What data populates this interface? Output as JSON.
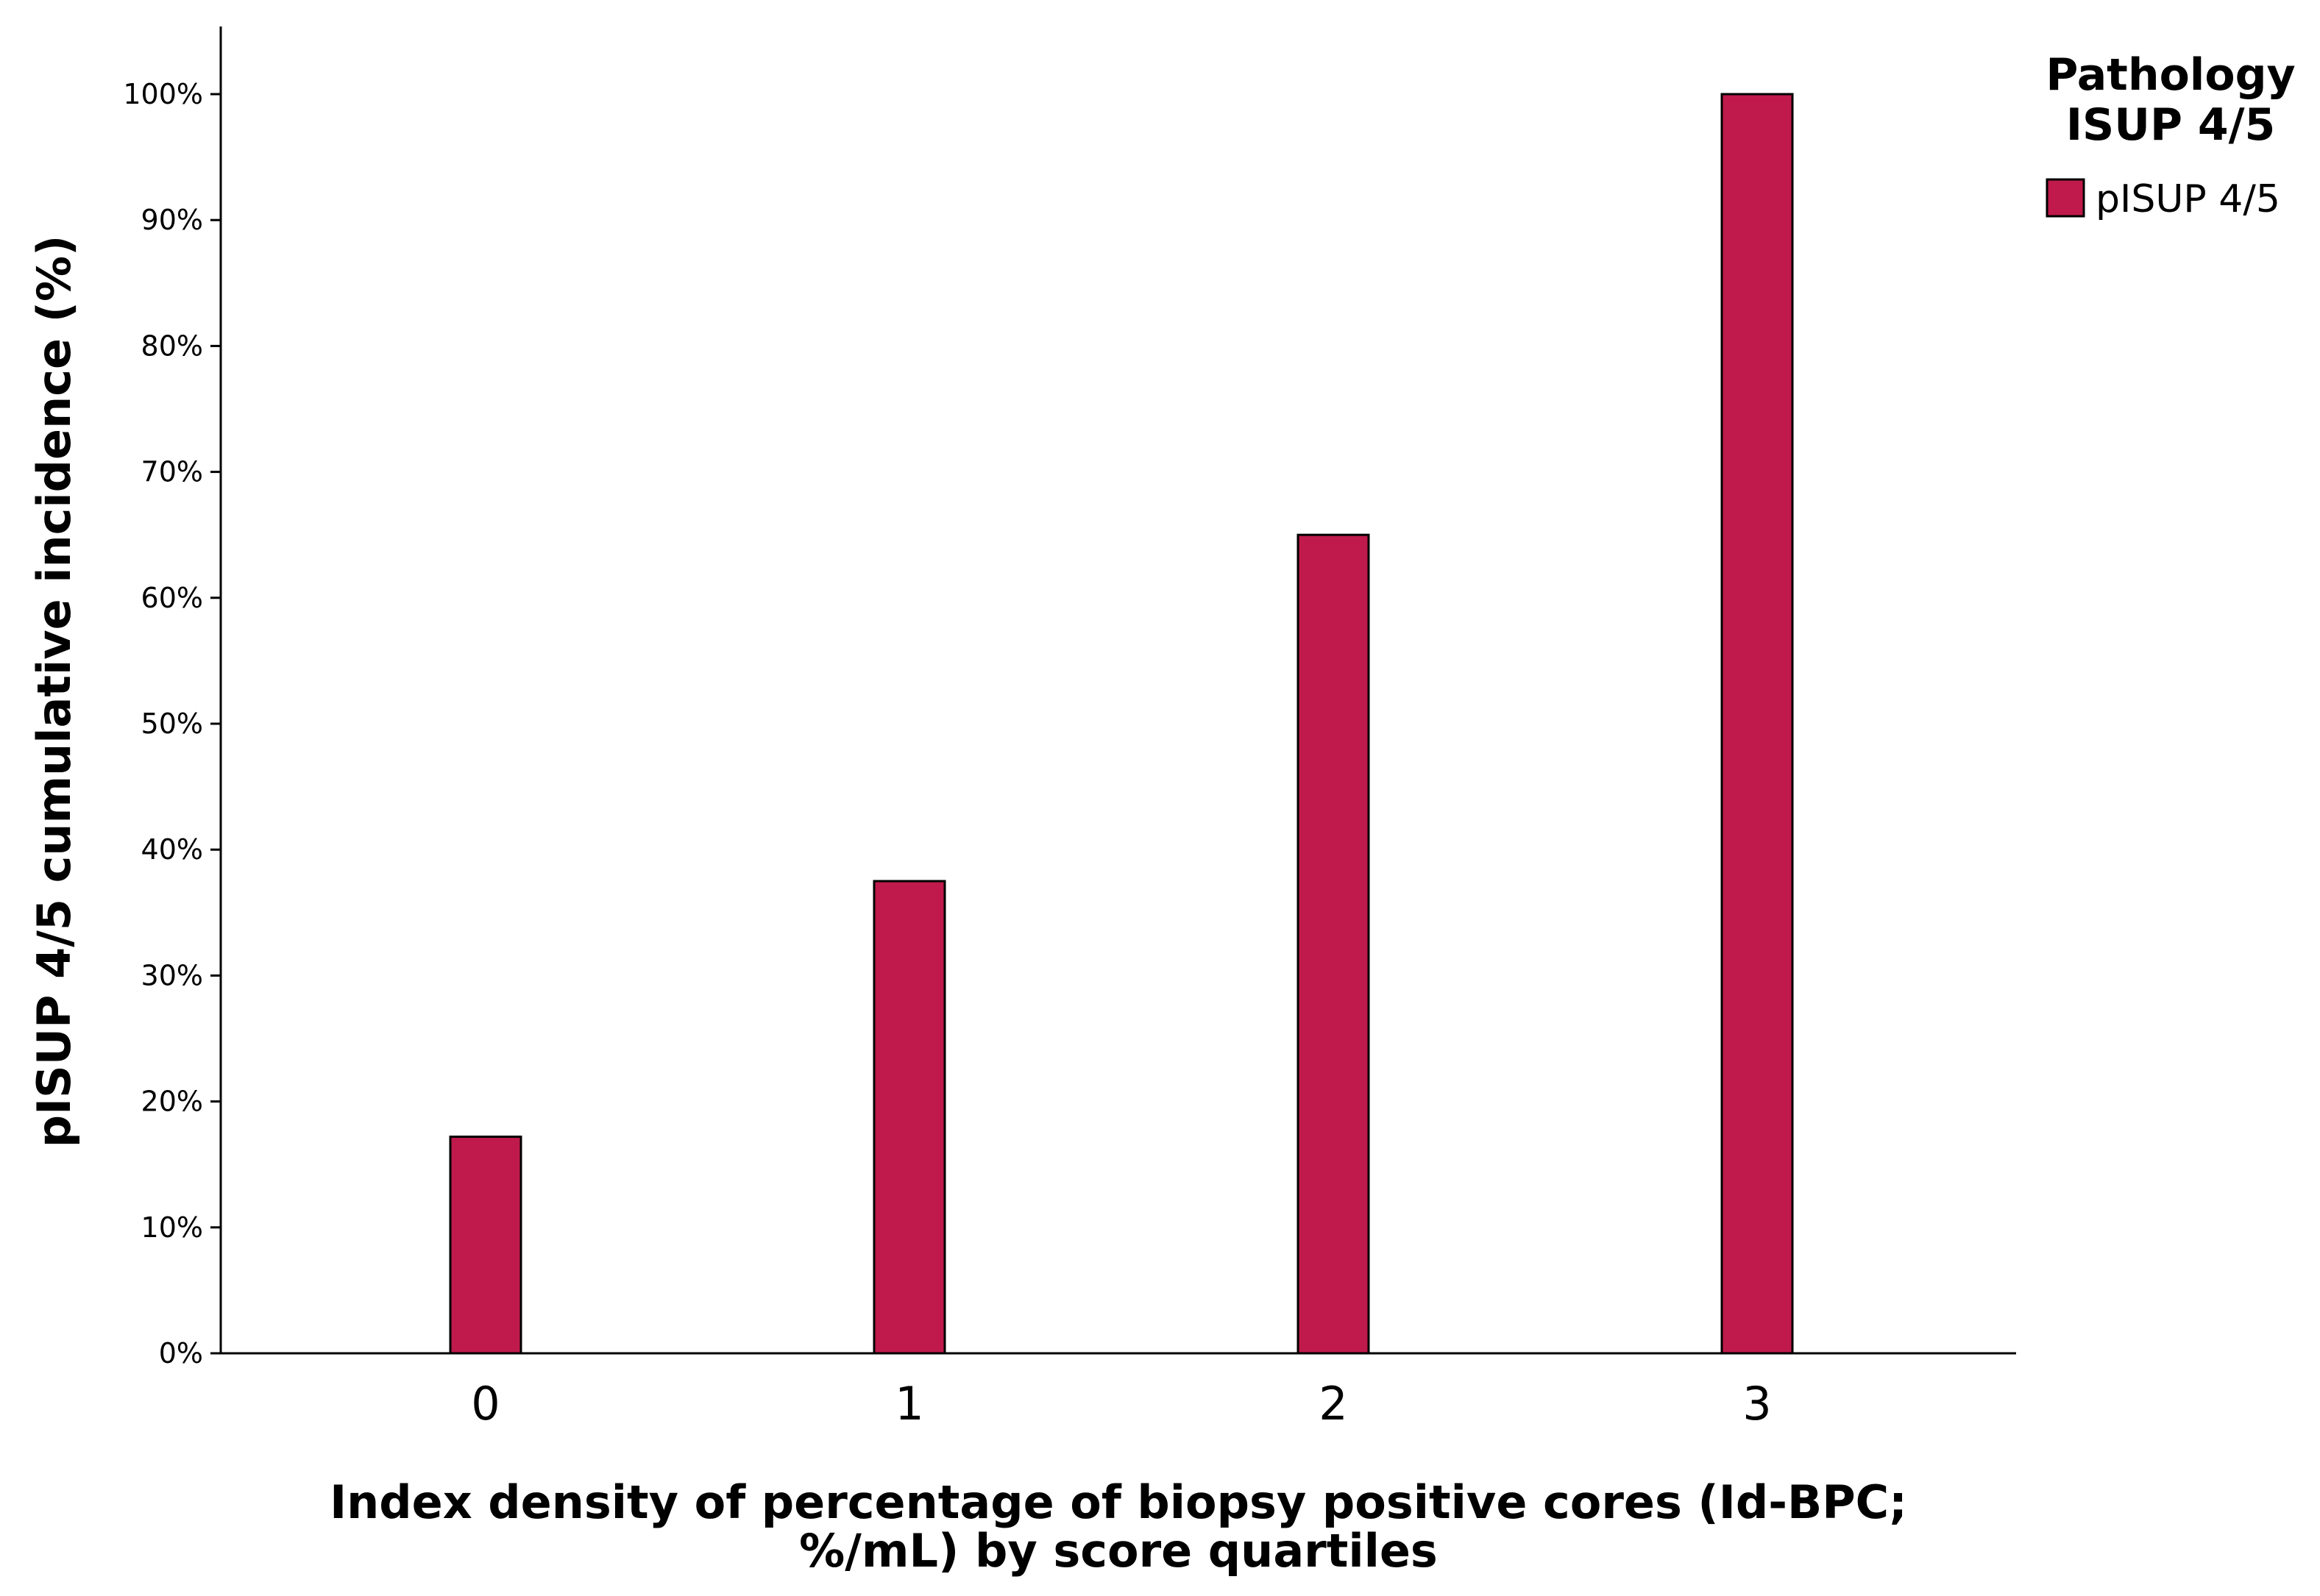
{
  "chart_data": {
    "type": "bar",
    "categories": [
      "0",
      "1",
      "2",
      "3"
    ],
    "series": [
      {
        "name": "pISUP 4/5",
        "values": [
          17.2,
          37.5,
          65.0,
          100.0
        ],
        "color": "#bf1a4b"
      }
    ],
    "xlabel_lines": [
      "Index density of percentage of biopsy positive cores (Id-BPC;",
      "%/mL) by score quartiles"
    ],
    "ylabel": "pISUP 4/5 cumulative incidence (%)",
    "ylim": [
      0,
      100
    ],
    "yticks": [
      0,
      10,
      20,
      30,
      40,
      50,
      60,
      70,
      80,
      90,
      100
    ],
    "ytick_labels": [
      "0%",
      "10%",
      "20%",
      "30%",
      "40%",
      "50%",
      "60%",
      "70%",
      "80%",
      "90%",
      "100%"
    ],
    "grid": false,
    "legend": {
      "title_lines": [
        "Pathology",
        "ISUP 4/5"
      ],
      "placement": "top-right"
    }
  }
}
